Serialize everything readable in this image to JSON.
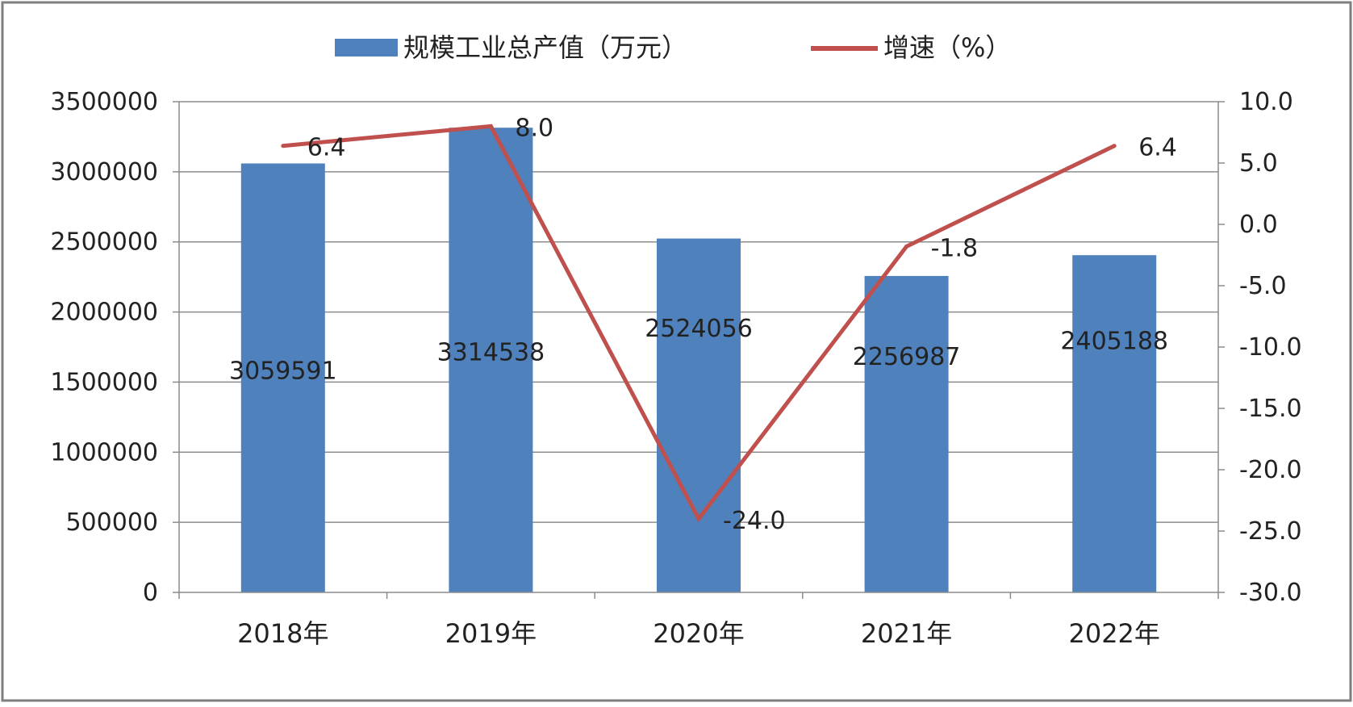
{
  "chart_data": {
    "type": "bar+line",
    "categories": [
      "2018年",
      "2019年",
      "2020年",
      "2021年",
      "2022年"
    ],
    "series": [
      {
        "name": "规模工业总产值（万元）",
        "type": "bar",
        "axis": "left",
        "values": [
          3059591,
          3314538,
          2524056,
          2256987,
          2405188
        ],
        "data_labels": [
          "3059591",
          "3314538",
          "2524056",
          "2256987",
          "2405188"
        ]
      },
      {
        "name": "增速（%）",
        "type": "line",
        "axis": "right",
        "values": [
          6.4,
          8.0,
          -24.0,
          -1.8,
          6.4
        ],
        "data_labels": [
          "6.4",
          "8.0",
          "-24.0",
          "-1.8",
          "6.4"
        ]
      }
    ],
    "left_axis": {
      "ylim": [
        0,
        3500000
      ],
      "ticks": [
        "0",
        "500000",
        "1000000",
        "1500000",
        "2000000",
        "2500000",
        "3000000",
        "3500000"
      ]
    },
    "right_axis": {
      "ylim": [
        -30,
        10
      ],
      "ticks": [
        "-30.0",
        "-25.0",
        "-20.0",
        "-15.0",
        "-10.0",
        "-5.0",
        "0.0",
        "5.0",
        "10.0"
      ]
    },
    "grid": true,
    "legend_position": "top-center",
    "colors": {
      "bar": "#4f81bd",
      "line": "#c0504d",
      "grid": "#8c8c8c",
      "frame": "#7f7f7f"
    }
  }
}
